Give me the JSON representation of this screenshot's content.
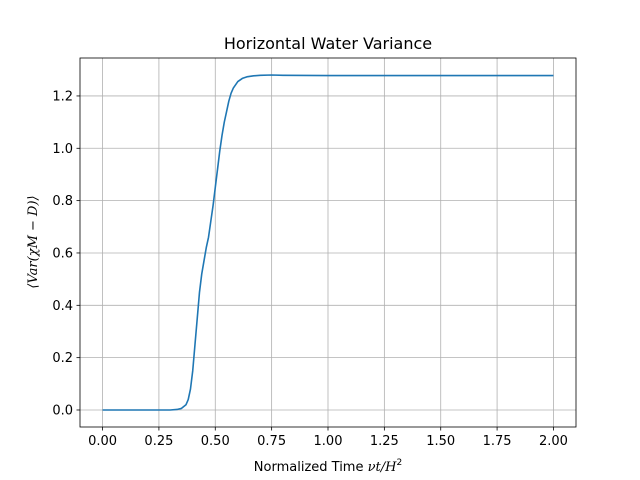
{
  "chart_data": {
    "type": "line",
    "title": "Horizontal Water Variance",
    "xlabel": {
      "text": "Normalized Time ",
      "math": "νt/H",
      "sup": "2"
    },
    "ylabel": {
      "text": "⟨Var(χM − D)⟩"
    },
    "xlim": [
      -0.1,
      2.1
    ],
    "ylim": [
      -0.065,
      1.345
    ],
    "xticks": [
      0.0,
      0.25,
      0.5,
      0.75,
      1.0,
      1.25,
      1.5,
      1.75,
      2.0
    ],
    "xtick_labels": [
      "0.00",
      "0.25",
      "0.50",
      "0.75",
      "1.00",
      "1.25",
      "1.50",
      "1.75",
      "2.00"
    ],
    "yticks": [
      0.0,
      0.2,
      0.4,
      0.6,
      0.8,
      1.0,
      1.2
    ],
    "ytick_labels": [
      "0.0",
      "0.2",
      "0.4",
      "0.6",
      "0.8",
      "1.0",
      "1.2"
    ],
    "grid": true,
    "legend": "none",
    "color": "#1f77b4",
    "series": [
      {
        "x": [
          0.0,
          0.1,
          0.2,
          0.3,
          0.33,
          0.35,
          0.37,
          0.38,
          0.39,
          0.4,
          0.41,
          0.42,
          0.43,
          0.44,
          0.45,
          0.46,
          0.47,
          0.48,
          0.49,
          0.5,
          0.51,
          0.52,
          0.53,
          0.54,
          0.55,
          0.56,
          0.57,
          0.58,
          0.6,
          0.62,
          0.64,
          0.67,
          0.7,
          0.75,
          0.8,
          1.0,
          1.25,
          1.5,
          1.75,
          2.0
        ],
        "values": [
          0.0,
          0.0,
          0.0,
          0.0,
          0.002,
          0.006,
          0.02,
          0.04,
          0.08,
          0.15,
          0.25,
          0.35,
          0.45,
          0.52,
          0.57,
          0.62,
          0.66,
          0.72,
          0.78,
          0.85,
          0.92,
          0.99,
          1.05,
          1.1,
          1.14,
          1.18,
          1.21,
          1.23,
          1.255,
          1.267,
          1.273,
          1.277,
          1.279,
          1.28,
          1.279,
          1.278,
          1.278,
          1.278,
          1.278,
          1.278
        ]
      }
    ]
  }
}
